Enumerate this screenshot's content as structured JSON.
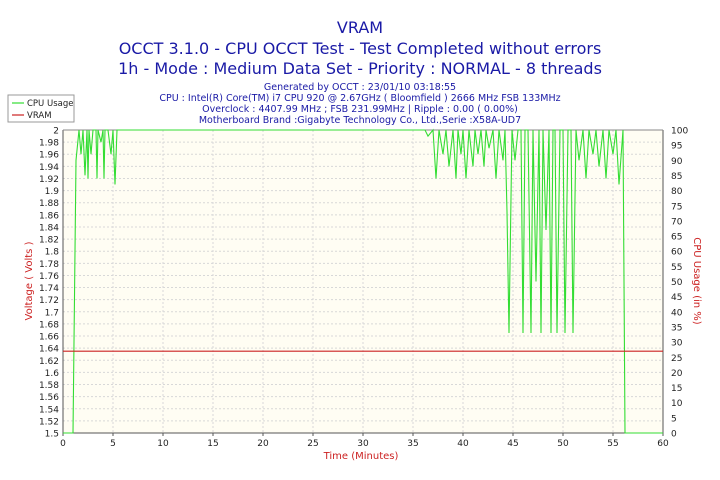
{
  "header": {
    "title": "VRAM",
    "subtitle1": "OCCT 3.1.0 - CPU OCCT Test - Test Completed without errors",
    "subtitle2": "1h - Mode : Medium Data Set - Priority : NORMAL - 8 threads",
    "info1": "Generated by OCCT : 23/01/10 03:18:55",
    "info2": "CPU : Intel(R) Core(TM) i7 CPU 920 @ 2.67GHz ( Bloomfield ) 2666 MHz FSB 133MHz",
    "info3": "Overclock : 4407.99 MHz ; FSB 231.99MHz | Ripple : 0.00 ( 0.00%)",
    "info4": "Motherboard Brand :Gigabyte Technology Co., Ltd.,Serie :X58A-UD7"
  },
  "colors": {
    "cpu_series": "#33dd33",
    "vram_series": "#cc2222",
    "plot_background": "#fffdf3",
    "text": "#1a1aa6",
    "axis_title": "#cc2222"
  },
  "chart_data": {
    "type": "line",
    "xlabel": "Time (Minutes)",
    "ylabel_left": "Voltage ( Volts )",
    "ylabel_right": "CPU Usage (in %)",
    "xlim": [
      0,
      60
    ],
    "ylim_left": [
      1.5,
      2.0
    ],
    "ylim_right": [
      0,
      100
    ],
    "x_ticks": [
      "0",
      "5",
      "10",
      "15",
      "20",
      "25",
      "30",
      "35",
      "40",
      "45",
      "50",
      "55",
      "60"
    ],
    "y_ticks_left": [
      "2",
      "1.98",
      "1.96",
      "1.94",
      "1.92",
      "1.9",
      "1.88",
      "1.86",
      "1.84",
      "1.82",
      "1.8",
      "1.78",
      "1.76",
      "1.74",
      "1.72",
      "1.7",
      "1.68",
      "1.66",
      "1.64",
      "1.62",
      "1.6",
      "1.58",
      "1.56",
      "1.54",
      "1.52",
      "1.5"
    ],
    "y_ticks_right": [
      "100",
      "95",
      "90",
      "85",
      "80",
      "75",
      "70",
      "65",
      "60",
      "55",
      "50",
      "45",
      "40",
      "35",
      "30",
      "25",
      "20",
      "15",
      "10",
      "5",
      "0"
    ],
    "grid": true,
    "legend_position": "top-left",
    "series": [
      {
        "name": "CPU Usage",
        "axis": "right",
        "x": [
          0,
          0.8,
          1.0,
          1.3,
          1.6,
          1.8,
          2.0,
          2.2,
          2.4,
          2.5,
          2.6,
          2.8,
          3.0,
          3.3,
          3.4,
          3.5,
          3.8,
          4.0,
          4.1,
          4.2,
          4.5,
          4.8,
          5.0,
          5.2,
          5.4,
          5.5,
          6,
          10,
          20,
          30,
          35,
          36.2,
          36.5,
          37.0,
          37.3,
          37.6,
          38.0,
          38.3,
          38.6,
          39.0,
          39.3,
          39.5,
          39.8,
          40.0,
          40.3,
          40.6,
          41.0,
          41.2,
          41.5,
          41.8,
          42.1,
          42.3,
          42.6,
          43.0,
          43.3,
          43.6,
          44.0,
          44.2,
          44.4,
          44.6,
          44.9,
          45.2,
          45.5,
          45.8,
          46.0,
          46.2,
          46.5,
          46.8,
          47.0,
          47.3,
          47.6,
          47.8,
          48.0,
          48.3,
          48.6,
          48.8,
          49.0,
          49.2,
          49.4,
          49.7,
          50.0,
          50.2,
          50.5,
          50.8,
          51.0,
          51.3,
          51.6,
          52.0,
          52.3,
          52.6,
          53.0,
          53.3,
          53.6,
          54.0,
          54.3,
          54.6,
          55.0,
          55.3,
          55.6,
          56.0,
          56.2,
          56.5,
          57,
          60
        ],
        "y": [
          0,
          0,
          0,
          90,
          100,
          92,
          100,
          85,
          100,
          84,
          100,
          92,
          100,
          100,
          84,
          100,
          96,
          100,
          84,
          100,
          100,
          92,
          100,
          82,
          100,
          100,
          100,
          100,
          100,
          100,
          100,
          100,
          98,
          100,
          84,
          100,
          92,
          100,
          88,
          100,
          84,
          100,
          92,
          100,
          84,
          100,
          88,
          100,
          92,
          100,
          88,
          100,
          94,
          100,
          84,
          100,
          90,
          100,
          73,
          33,
          100,
          90,
          100,
          100,
          33,
          100,
          100,
          33,
          100,
          50,
          100,
          33,
          100,
          67,
          100,
          33,
          100,
          100,
          33,
          100,
          100,
          33,
          100,
          100,
          33,
          100,
          90,
          100,
          84,
          100,
          92,
          100,
          88,
          100,
          84,
          100,
          92,
          100,
          82,
          100,
          0,
          0,
          0,
          0
        ],
        "note": "CPU usage stays near 100% with frequent brief dips"
      },
      {
        "name": "VRAM",
        "axis": "left",
        "x": [
          0,
          60
        ],
        "y": [
          1.635,
          1.635
        ]
      }
    ]
  }
}
